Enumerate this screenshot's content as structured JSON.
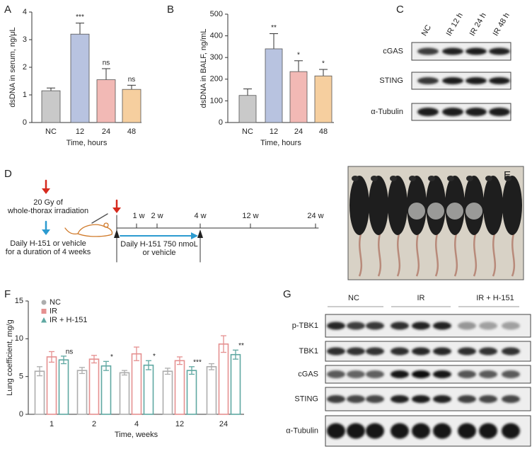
{
  "panel_labels": [
    "A",
    "B",
    "C",
    "D",
    "E",
    "F",
    "G"
  ],
  "chart_data": [
    {
      "type": "bar",
      "categories": [
        "NC",
        "12",
        "24",
        "48"
      ],
      "values": [
        1.15,
        3.2,
        1.55,
        1.2
      ],
      "errors": [
        0.1,
        0.4,
        0.4,
        0.15
      ],
      "colors": [
        "#c9c9c9",
        "#b8c3e0",
        "#f2b9b5",
        "#f6cf9f"
      ],
      "annotations": [
        null,
        "***",
        "ns",
        "ns"
      ],
      "x_label": "Time, hours",
      "y_label": "dsDNA in serum, ng/μL",
      "ylim": [
        0,
        4
      ],
      "yticks": [
        0,
        1,
        2,
        3,
        4
      ]
    },
    {
      "type": "bar",
      "categories": [
        "NC",
        "12",
        "24",
        "48"
      ],
      "values": [
        125,
        340,
        235,
        215
      ],
      "errors": [
        30,
        70,
        50,
        30
      ],
      "colors": [
        "#c9c9c9",
        "#b8c3e0",
        "#f2b9b5",
        "#f6cf9f"
      ],
      "annotations": [
        null,
        "**",
        "*",
        "*"
      ],
      "x_label": "Time, hours",
      "y_label": "dsDNA in BALF, ng/mL",
      "ylim": [
        0,
        500
      ],
      "yticks": [
        0,
        100,
        200,
        300,
        400,
        500
      ]
    },
    {
      "type": "grouped_bar",
      "categories": [
        "1",
        "2",
        "4",
        "12",
        "24"
      ],
      "series": [
        {
          "name": "NC",
          "color": "#adadad",
          "values": [
            5.7,
            5.8,
            5.5,
            5.7,
            6.3
          ],
          "errors": [
            0.6,
            0.4,
            0.3,
            0.4,
            0.4
          ]
        },
        {
          "name": "IR",
          "color": "#e59090",
          "values": [
            7.6,
            7.3,
            8.0,
            7.1,
            9.3
          ],
          "errors": [
            0.7,
            0.5,
            0.9,
            0.5,
            1.1
          ]
        },
        {
          "name": "IR + H-151",
          "color": "#5fa8a2",
          "values": [
            7.2,
            6.4,
            6.5,
            5.8,
            7.9
          ],
          "errors": [
            0.5,
            0.6,
            0.6,
            0.5,
            0.6
          ]
        }
      ],
      "annotations": [
        "ns",
        "*",
        "*",
        "***",
        "**"
      ],
      "legend": "upper left",
      "x_label": "Time, weeks",
      "y_label": "Lung coefficient, mg/g",
      "ylim": [
        0,
        15
      ],
      "yticks": [
        0,
        5,
        10,
        15
      ]
    }
  ],
  "blot_c": {
    "lanes": [
      "NC",
      "IR 12 h",
      "IR 24 h",
      "IR 48 h"
    ],
    "rows": [
      "cGAS",
      "STING",
      "α-Tubulin"
    ]
  },
  "timeline_d": {
    "irradiation": [
      "20 Gy of",
      "whole-thorax irradiation"
    ],
    "treatment": [
      "Daily H-151 or vehicle",
      "for a duration of 4 weeks"
    ],
    "timepoints": [
      "1 w",
      "2 w",
      "4 w",
      "12 w",
      "24 w"
    ],
    "dosing": [
      "Daily H-151 750 nmoL",
      "or vehicle"
    ]
  },
  "blot_g": {
    "groups": [
      "NC",
      "IR",
      "IR + H-151"
    ],
    "rows": [
      "p-TBK1",
      "TBK1",
      "cGAS",
      "STING",
      "α-Tubulin"
    ]
  }
}
